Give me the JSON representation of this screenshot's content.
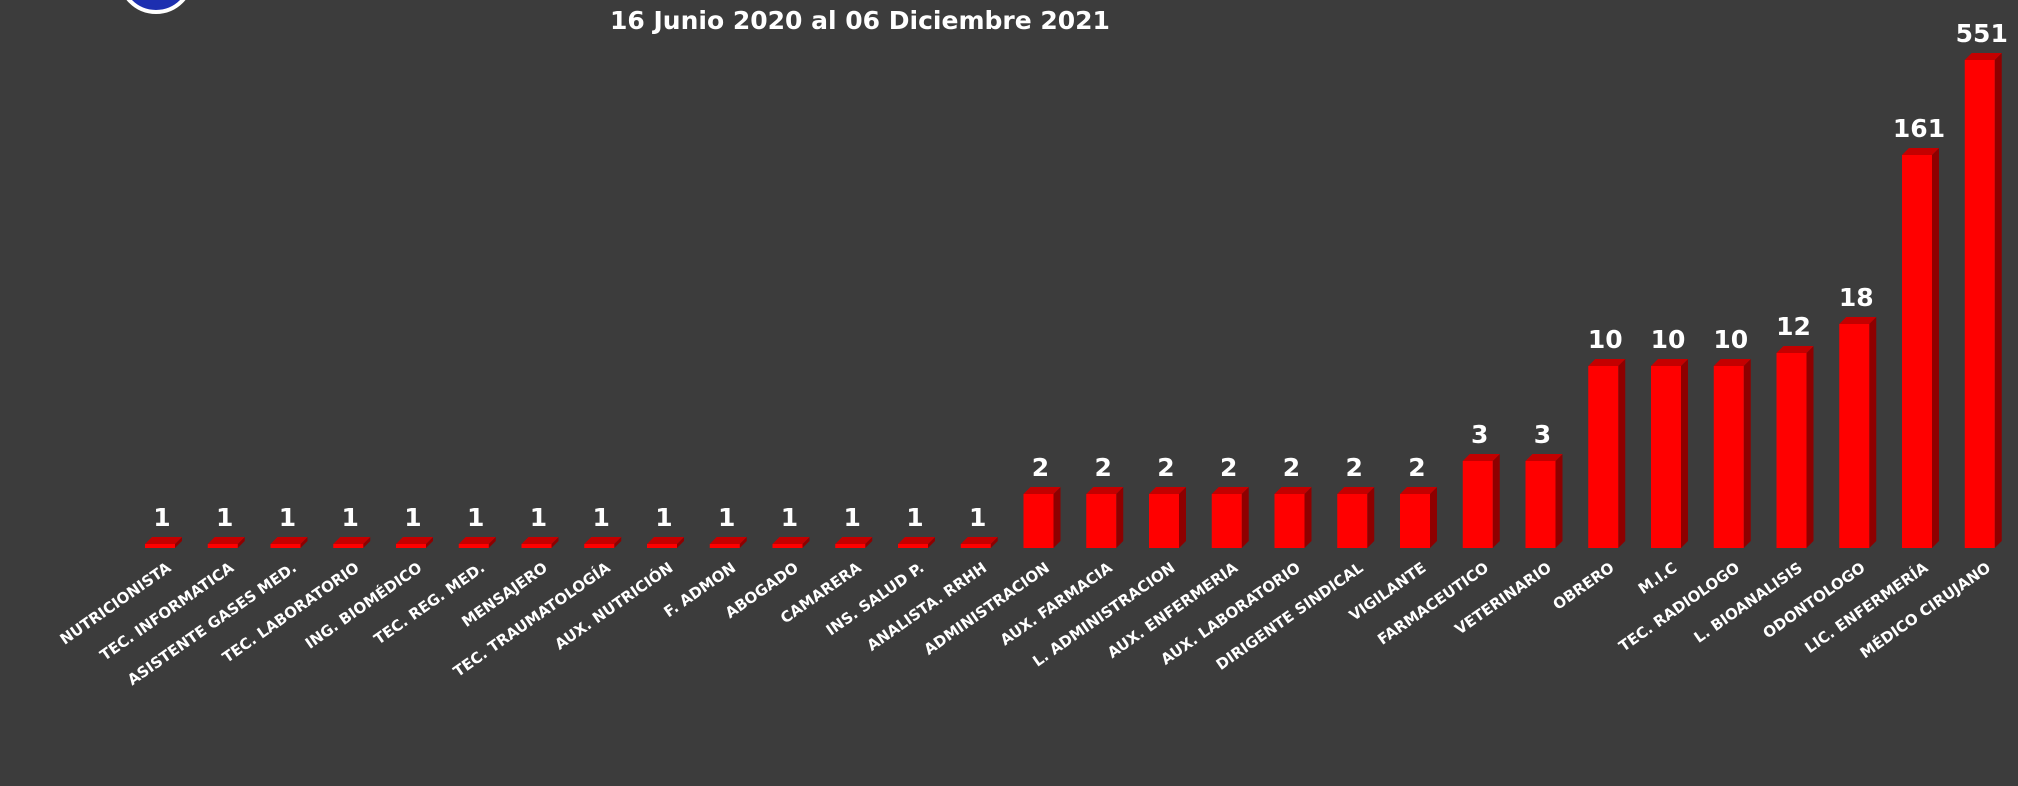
{
  "title": "16 Junio 2020 al 06 Diciembre 2021",
  "colors": {
    "background": "#3c3c3c",
    "bar_front": "#ff0000",
    "bar_side": "#8e0000",
    "bar_top": "#c40000",
    "text": "#ffffff"
  },
  "chart_data": {
    "type": "bar",
    "title": "16 Junio 2020 al 06 Diciembre 2021",
    "xlabel": "",
    "ylabel": "",
    "grid": false,
    "legend": "none",
    "categories": [
      "NUTRICIONISTA",
      "TEC. INFORMATICA",
      "ASISTENTE GASES MED.",
      "TEC. LABORATORIO",
      "ING. BIOMÉDICO",
      "TEC. REG. MED.",
      "MENSAJERO",
      "TEC. TRAUMATOLOGÍA",
      "AUX. NUTRICIÓN",
      "F. ADMON",
      "ABOGADO",
      "CAMARERA",
      "INS. SALUD P.",
      "ANALISTA. RRHH",
      "ADMINISTRACION",
      "AUX. FARMACIA",
      "L. ADMINISTRACION",
      "AUX. ENFERMERIA",
      "AUX. LABORATORIO",
      "DIRIGENTE SINDICAL",
      "VIGILANTE",
      "FARMACEUTICO",
      "VETERINARIO",
      "OBRERO",
      "M.I.C",
      "TEC. RADIOLOGO",
      "L. BIOANALISIS",
      "ODONTOLOGO",
      "LIC. ENFERMERÍA",
      "MÉDICO CIRUJANO"
    ],
    "values": [
      1,
      1,
      1,
      1,
      1,
      1,
      1,
      1,
      1,
      1,
      1,
      1,
      1,
      1,
      2,
      2,
      2,
      2,
      2,
      2,
      2,
      3,
      3,
      10,
      10,
      10,
      12,
      18,
      161,
      551
    ]
  }
}
